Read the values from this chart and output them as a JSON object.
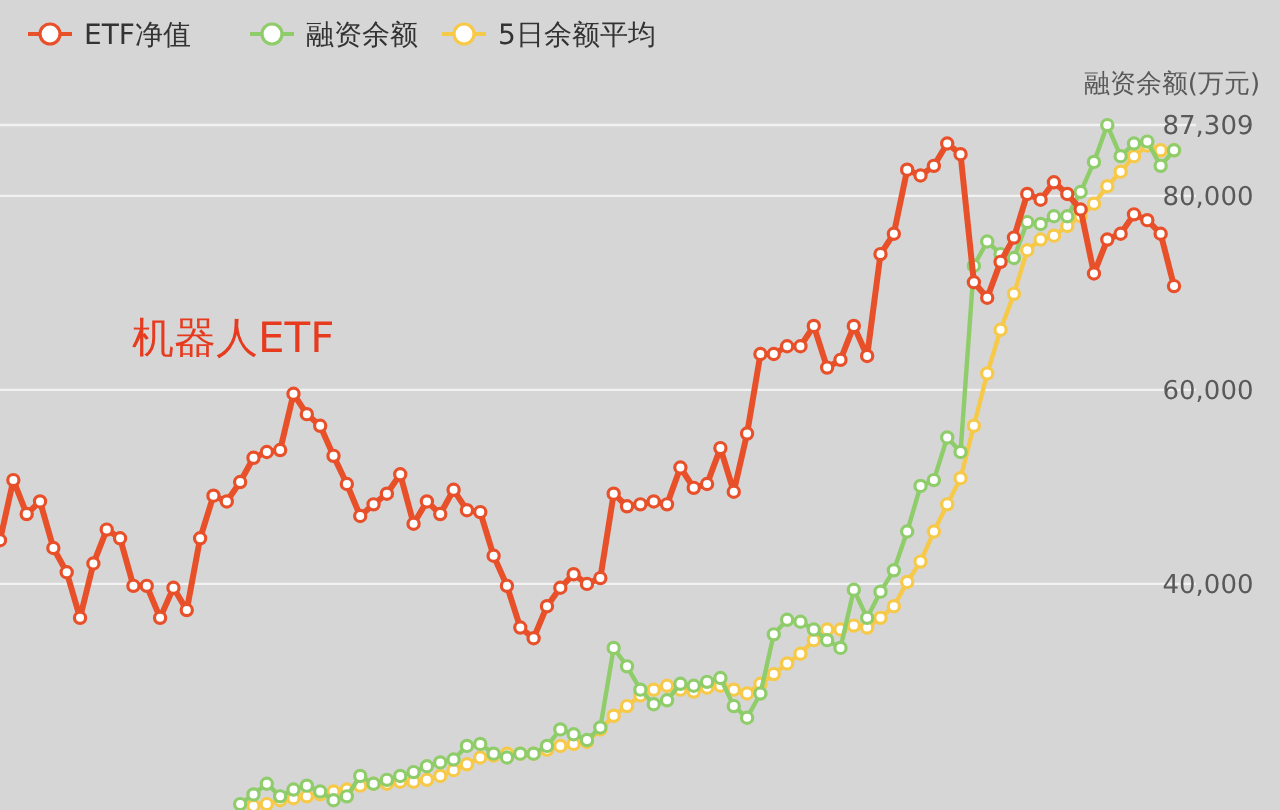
{
  "chart_data": {
    "type": "line",
    "ylabel": "融资余额(万元)",
    "categories": [
      null,
      null,
      null,
      null,
      null,
      null,
      null,
      null,
      null,
      null,
      null,
      null,
      null,
      null,
      null,
      null,
      null,
      null,
      null,
      null,
      null,
      null,
      null,
      null,
      null,
      null,
      null,
      null,
      null,
      null,
      null,
      null,
      null,
      null,
      null,
      null,
      null,
      null,
      null,
      null,
      null,
      null,
      null,
      null,
      null,
      null,
      null,
      null,
      null,
      null,
      null,
      null,
      null,
      null,
      null,
      null,
      null,
      null,
      null,
      null,
      null,
      null,
      null,
      null,
      null,
      null,
      null,
      null,
      null,
      null,
      null,
      null,
      null,
      null,
      null,
      null,
      null,
      null,
      null,
      null,
      null,
      null,
      null,
      null,
      null,
      null,
      null,
      null,
      null
    ],
    "series": [
      {
        "name": "ETF净值",
        "color": "#e8502a",
        "values": [
          44500,
          50700,
          47200,
          48500,
          43700,
          41200,
          36500,
          42100,
          45600,
          44700,
          39800,
          39800,
          36500,
          39600,
          37300,
          44700,
          49100,
          48500,
          50500,
          53000,
          53600,
          53800,
          59600,
          57500,
          56300,
          53200,
          50300,
          47000,
          48200,
          49300,
          51300,
          46200,
          48500,
          47200,
          49700,
          47600,
          47400,
          42900,
          39800,
          35500,
          34400,
          37700,
          39600,
          41000,
          40000,
          40600,
          49300,
          48000,
          48200,
          48500,
          48200,
          52000,
          49900,
          50300,
          54000,
          49500,
          55500,
          63700,
          63700,
          64500,
          64500,
          66600,
          62300,
          63100,
          66600,
          63500,
          74000,
          76100,
          82700,
          82100,
          83100,
          85400,
          84300,
          71100,
          69500,
          73200,
          75700,
          80200,
          79600,
          81400,
          80200,
          78600,
          72000,
          75500,
          76100,
          78100,
          77500,
          76100,
          70700
        ]
      },
      {
        "name": "融资余额",
        "color": "#8fcc6a",
        "values": [
          null,
          null,
          null,
          null,
          null,
          null,
          null,
          null,
          null,
          null,
          null,
          null,
          null,
          null,
          null,
          null,
          null,
          null,
          17300,
          18300,
          19400,
          18100,
          18800,
          19200,
          18600,
          17700,
          18100,
          20200,
          19400,
          19800,
          20200,
          20600,
          21200,
          21600,
          21900,
          23300,
          23500,
          22500,
          22100,
          22500,
          22500,
          23300,
          25000,
          24500,
          23900,
          25200,
          33400,
          31500,
          29100,
          27600,
          28000,
          29700,
          29500,
          29900,
          30300,
          27400,
          26200,
          28700,
          34800,
          36300,
          36100,
          35300,
          34200,
          33400,
          39400,
          36500,
          39200,
          41400,
          45400,
          50100,
          50700,
          55100,
          53600,
          72800,
          75300,
          74000,
          73600,
          77300,
          77100,
          77900,
          77900,
          80400,
          83500,
          87300,
          84100,
          85400,
          85600,
          83100,
          84700
        ]
      },
      {
        "name": "5日余额平均",
        "color": "#f7c948",
        "values": [
          null,
          null,
          null,
          null,
          null,
          null,
          null,
          null,
          null,
          null,
          null,
          null,
          null,
          null,
          null,
          null,
          null,
          null,
          null,
          17100,
          17300,
          17700,
          17900,
          18100,
          18300,
          18600,
          18800,
          19200,
          19400,
          19400,
          19600,
          19600,
          19800,
          20200,
          20800,
          21400,
          22100,
          22300,
          22500,
          22500,
          22500,
          22900,
          23300,
          23500,
          23700,
          25000,
          26400,
          27400,
          28500,
          29100,
          29500,
          29100,
          28900,
          29300,
          29500,
          29100,
          28700,
          29700,
          30700,
          31800,
          32800,
          34200,
          35300,
          35300,
          35700,
          35500,
          36500,
          37700,
          40200,
          42300,
          45400,
          48200,
          50900,
          56300,
          61700,
          66200,
          69900,
          74400,
          75500,
          75900,
          76900,
          77900,
          79200,
          81000,
          82500,
          84100,
          85200,
          84700,
          84700
        ]
      }
    ],
    "ylim": [
      17000,
      87309
    ],
    "yticks": [
      {
        "value": 40000,
        "label": "40,000"
      },
      {
        "value": 60000,
        "label": "60,000"
      },
      {
        "value": 80000,
        "label": "80,000"
      },
      {
        "value": 87309,
        "label": "87,309"
      }
    ],
    "tick_labels": "y",
    "grid": "y",
    "legend": "top left",
    "marker": "circle",
    "annotations": [
      "机器人ETF"
    ]
  }
}
